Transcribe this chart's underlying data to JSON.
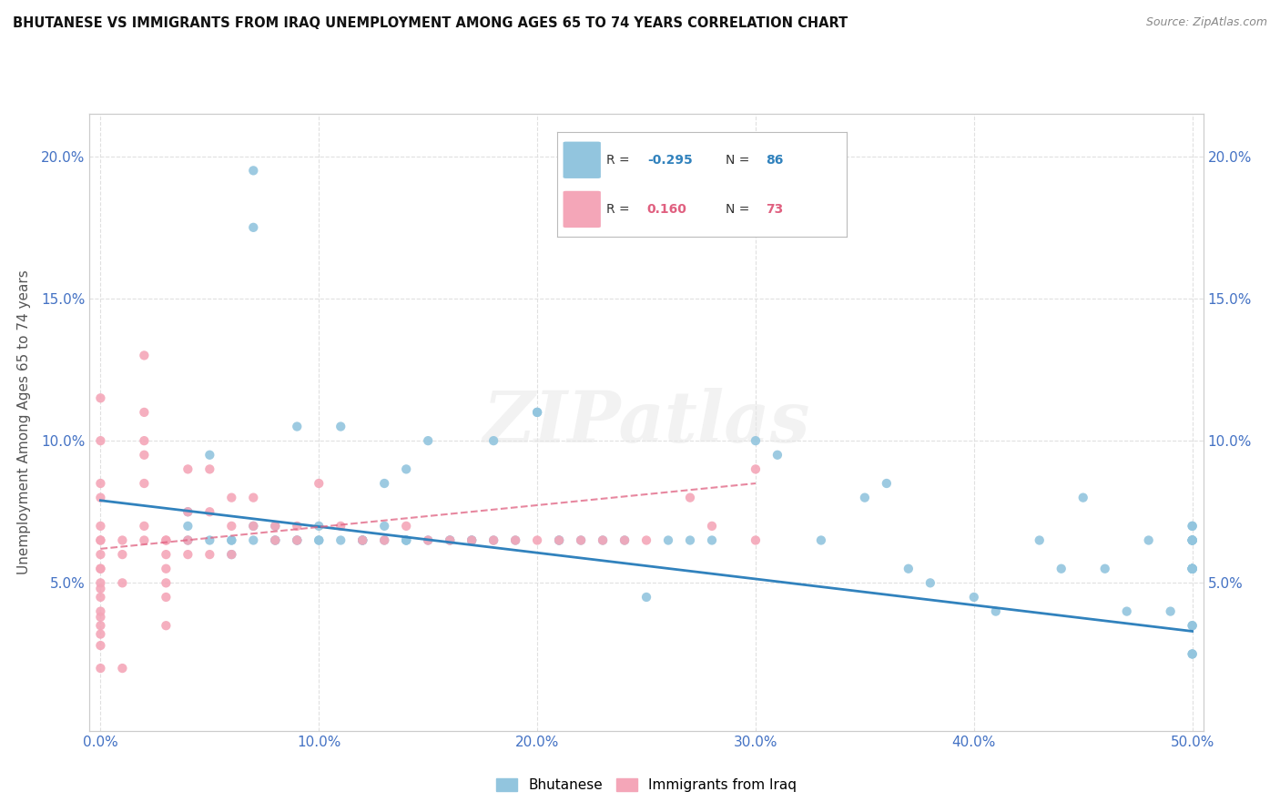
{
  "title": "BHUTANESE VS IMMIGRANTS FROM IRAQ UNEMPLOYMENT AMONG AGES 65 TO 74 YEARS CORRELATION CHART",
  "source": "Source: ZipAtlas.com",
  "ylabel_label": "Unemployment Among Ages 65 to 74 years",
  "legend_label1": "Bhutanese",
  "legend_label2": "Immigrants from Iraq",
  "R1": -0.295,
  "N1": 86,
  "R2": 0.16,
  "N2": 73,
  "color_blue": "#92c5de",
  "color_pink": "#f4a6b8",
  "color_blue_line": "#3182bd",
  "color_pink_line": "#e06080",
  "xlim": [
    -0.005,
    0.505
  ],
  "ylim": [
    -0.002,
    0.215
  ],
  "xticks": [
    0.0,
    0.1,
    0.2,
    0.3,
    0.4,
    0.5
  ],
  "yticks": [
    0.05,
    0.1,
    0.15,
    0.2
  ],
  "xticklabels": [
    "0.0%",
    "10.0%",
    "20.0%",
    "30.0%",
    "40.0%",
    "50.0%"
  ],
  "yticklabels": [
    "5.0%",
    "10.0%",
    "15.0%",
    "20.0%"
  ],
  "right_yticks": [
    0.05,
    0.1,
    0.15,
    0.2
  ],
  "right_yticklabels": [
    "5.0%",
    "10.0%",
    "15.0%",
    "20.0%"
  ],
  "blue_x": [
    0.04,
    0.04,
    0.04,
    0.05,
    0.05,
    0.06,
    0.06,
    0.06,
    0.07,
    0.07,
    0.07,
    0.07,
    0.08,
    0.08,
    0.08,
    0.09,
    0.09,
    0.09,
    0.1,
    0.1,
    0.1,
    0.11,
    0.11,
    0.12,
    0.12,
    0.12,
    0.13,
    0.13,
    0.13,
    0.14,
    0.14,
    0.14,
    0.14,
    0.15,
    0.15,
    0.16,
    0.16,
    0.17,
    0.17,
    0.18,
    0.18,
    0.19,
    0.2,
    0.2,
    0.21,
    0.21,
    0.22,
    0.23,
    0.24,
    0.25,
    0.26,
    0.27,
    0.28,
    0.3,
    0.31,
    0.33,
    0.35,
    0.36,
    0.37,
    0.38,
    0.4,
    0.41,
    0.43,
    0.44,
    0.45,
    0.46,
    0.47,
    0.48,
    0.49,
    0.5,
    0.5,
    0.5,
    0.5,
    0.5,
    0.5,
    0.5,
    0.5,
    0.5,
    0.5,
    0.5,
    0.5,
    0.5,
    0.5,
    0.5,
    0.5,
    0.5
  ],
  "blue_y": [
    0.065,
    0.07,
    0.075,
    0.095,
    0.065,
    0.065,
    0.06,
    0.065,
    0.07,
    0.065,
    0.195,
    0.175,
    0.07,
    0.065,
    0.065,
    0.105,
    0.065,
    0.065,
    0.07,
    0.065,
    0.065,
    0.105,
    0.065,
    0.065,
    0.065,
    0.065,
    0.085,
    0.07,
    0.065,
    0.065,
    0.065,
    0.09,
    0.065,
    0.1,
    0.065,
    0.065,
    0.065,
    0.065,
    0.065,
    0.1,
    0.065,
    0.065,
    0.11,
    0.11,
    0.065,
    0.065,
    0.065,
    0.065,
    0.065,
    0.045,
    0.065,
    0.065,
    0.065,
    0.1,
    0.095,
    0.065,
    0.08,
    0.085,
    0.055,
    0.05,
    0.045,
    0.04,
    0.065,
    0.055,
    0.08,
    0.055,
    0.04,
    0.065,
    0.04,
    0.065,
    0.07,
    0.055,
    0.065,
    0.055,
    0.055,
    0.035,
    0.025,
    0.065,
    0.07,
    0.055,
    0.065,
    0.055,
    0.055,
    0.035,
    0.025,
    0.065
  ],
  "pink_x": [
    0.0,
    0.0,
    0.0,
    0.0,
    0.0,
    0.0,
    0.0,
    0.0,
    0.0,
    0.0,
    0.0,
    0.0,
    0.0,
    0.0,
    0.0,
    0.0,
    0.0,
    0.0,
    0.0,
    0.01,
    0.01,
    0.01,
    0.01,
    0.02,
    0.02,
    0.02,
    0.02,
    0.02,
    0.02,
    0.02,
    0.03,
    0.03,
    0.03,
    0.03,
    0.03,
    0.03,
    0.03,
    0.04,
    0.04,
    0.04,
    0.04,
    0.05,
    0.05,
    0.05,
    0.06,
    0.06,
    0.06,
    0.07,
    0.07,
    0.08,
    0.08,
    0.09,
    0.09,
    0.1,
    0.11,
    0.12,
    0.13,
    0.14,
    0.15,
    0.16,
    0.17,
    0.18,
    0.19,
    0.2,
    0.21,
    0.22,
    0.23,
    0.24,
    0.25,
    0.27,
    0.28,
    0.3,
    0.3
  ],
  "pink_y": [
    0.115,
    0.1,
    0.085,
    0.08,
    0.07,
    0.065,
    0.065,
    0.06,
    0.055,
    0.055,
    0.05,
    0.048,
    0.045,
    0.04,
    0.038,
    0.035,
    0.032,
    0.028,
    0.02,
    0.065,
    0.06,
    0.05,
    0.02,
    0.13,
    0.11,
    0.1,
    0.095,
    0.085,
    0.07,
    0.065,
    0.065,
    0.065,
    0.06,
    0.055,
    0.05,
    0.045,
    0.035,
    0.09,
    0.075,
    0.065,
    0.06,
    0.09,
    0.075,
    0.06,
    0.08,
    0.07,
    0.06,
    0.08,
    0.07,
    0.07,
    0.065,
    0.07,
    0.065,
    0.085,
    0.07,
    0.065,
    0.065,
    0.07,
    0.065,
    0.065,
    0.065,
    0.065,
    0.065,
    0.065,
    0.065,
    0.065,
    0.065,
    0.065,
    0.065,
    0.08,
    0.07,
    0.09,
    0.065
  ],
  "blue_line_x0": 0.0,
  "blue_line_x1": 0.5,
  "blue_line_y0": 0.079,
  "blue_line_y1": 0.033,
  "pink_line_x0": 0.0,
  "pink_line_x1": 0.3,
  "pink_line_y0": 0.062,
  "pink_line_y1": 0.085,
  "watermark_text": "ZIPatlas",
  "bg_color": "#ffffff",
  "grid_color": "#e0e0e0",
  "tick_color_blue": "#4472c4",
  "tick_color_gray": "#555555"
}
